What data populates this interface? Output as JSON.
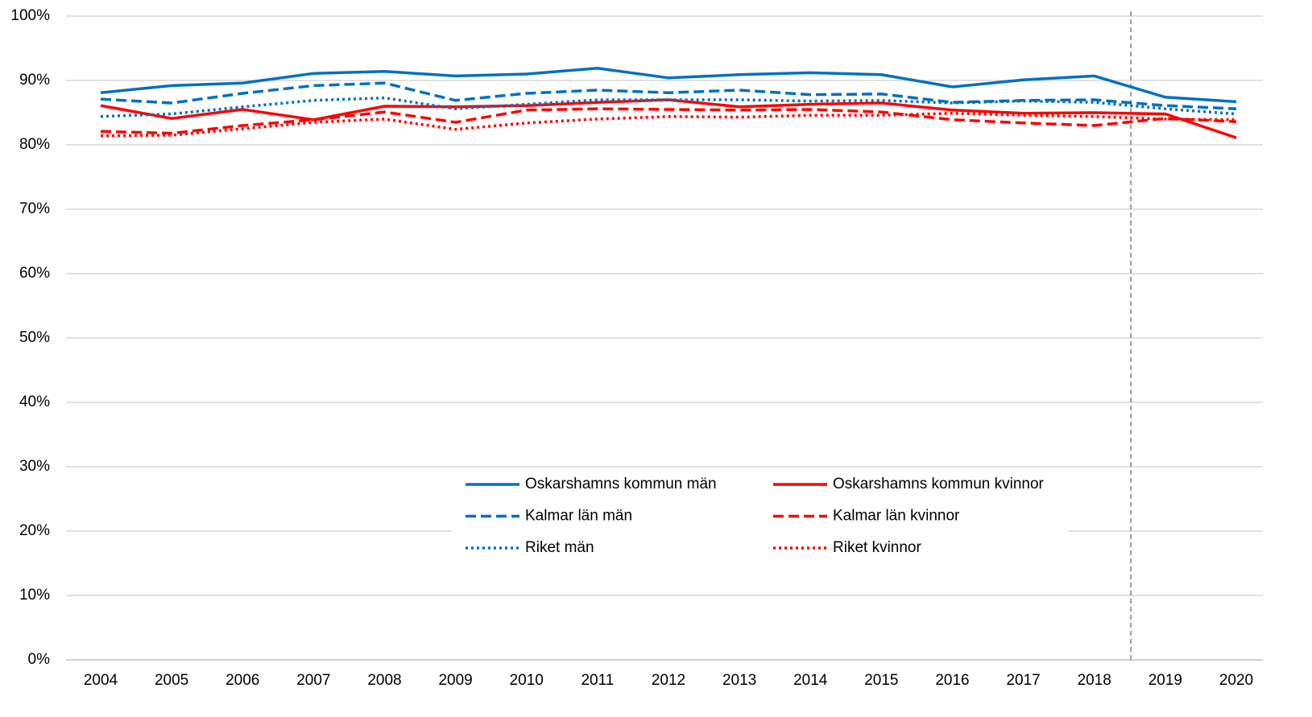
{
  "chart_data": {
    "type": "line",
    "categories": [
      "2004",
      "2005",
      "2006",
      "2007",
      "2008",
      "2009",
      "2010",
      "2011",
      "2012",
      "2013",
      "2014",
      "2015",
      "2016",
      "2017",
      "2018",
      "2019",
      "2020"
    ],
    "series": [
      {
        "name": "Oskarshamns kommun män",
        "color": "#0070c0",
        "dash": "solid",
        "values": [
          88.1,
          89.2,
          89.6,
          91.1,
          91.4,
          90.7,
          91.0,
          91.9,
          90.4,
          90.9,
          91.2,
          90.9,
          89.0,
          90.1,
          90.7,
          87.4,
          86.7
        ]
      },
      {
        "name": "Oskarshamns kommun kvinnor",
        "color": "#ff0000",
        "dash": "solid",
        "values": [
          86.1,
          84.1,
          85.5,
          83.9,
          86.0,
          85.9,
          86.1,
          86.6,
          87.0,
          85.9,
          86.3,
          86.5,
          85.4,
          84.9,
          85.0,
          84.8,
          81.1
        ]
      },
      {
        "name": "Kalmar län män",
        "color": "#0070c0",
        "dash": "dashed",
        "values": [
          87.1,
          86.5,
          88.0,
          89.2,
          89.6,
          86.9,
          88.0,
          88.5,
          88.1,
          88.5,
          87.8,
          87.9,
          86.6,
          86.9,
          87.0,
          86.1,
          85.6
        ]
      },
      {
        "name": "Kalmar län kvinnor",
        "color": "#ff0000",
        "dash": "dashed",
        "values": [
          82.1,
          81.8,
          83.0,
          83.9,
          85.1,
          83.5,
          85.4,
          85.6,
          85.5,
          85.4,
          85.5,
          85.1,
          83.9,
          83.4,
          83.0,
          84.1,
          83.6
        ]
      },
      {
        "name": "Riket män",
        "color": "#0070c0",
        "dash": "dotted",
        "values": [
          84.4,
          84.8,
          85.9,
          86.9,
          87.3,
          85.6,
          86.3,
          87.0,
          87.0,
          87.0,
          86.8,
          86.9,
          86.5,
          86.8,
          86.6,
          85.6,
          84.8
        ]
      },
      {
        "name": "Riket kvinnor",
        "color": "#ff0000",
        "dash": "dotted",
        "values": [
          81.4,
          81.5,
          82.5,
          83.5,
          84.0,
          82.4,
          83.4,
          84.0,
          84.4,
          84.3,
          84.6,
          84.6,
          84.9,
          84.6,
          84.4,
          84.0,
          83.9
        ]
      }
    ],
    "ylim": [
      0,
      100
    ],
    "yticks": [
      {
        "value": 0,
        "label": "0%"
      },
      {
        "value": 10,
        "label": "10%"
      },
      {
        "value": 20,
        "label": "20%"
      },
      {
        "value": 30,
        "label": "30%"
      },
      {
        "value": 40,
        "label": "40%"
      },
      {
        "value": 50,
        "label": "50%"
      },
      {
        "value": 60,
        "label": "60%"
      },
      {
        "value": 70,
        "label": "70%"
      },
      {
        "value": 80,
        "label": "80%"
      },
      {
        "value": 90,
        "label": "90%"
      },
      {
        "value": 100,
        "label": "100%"
      }
    ],
    "grid": true
  }
}
